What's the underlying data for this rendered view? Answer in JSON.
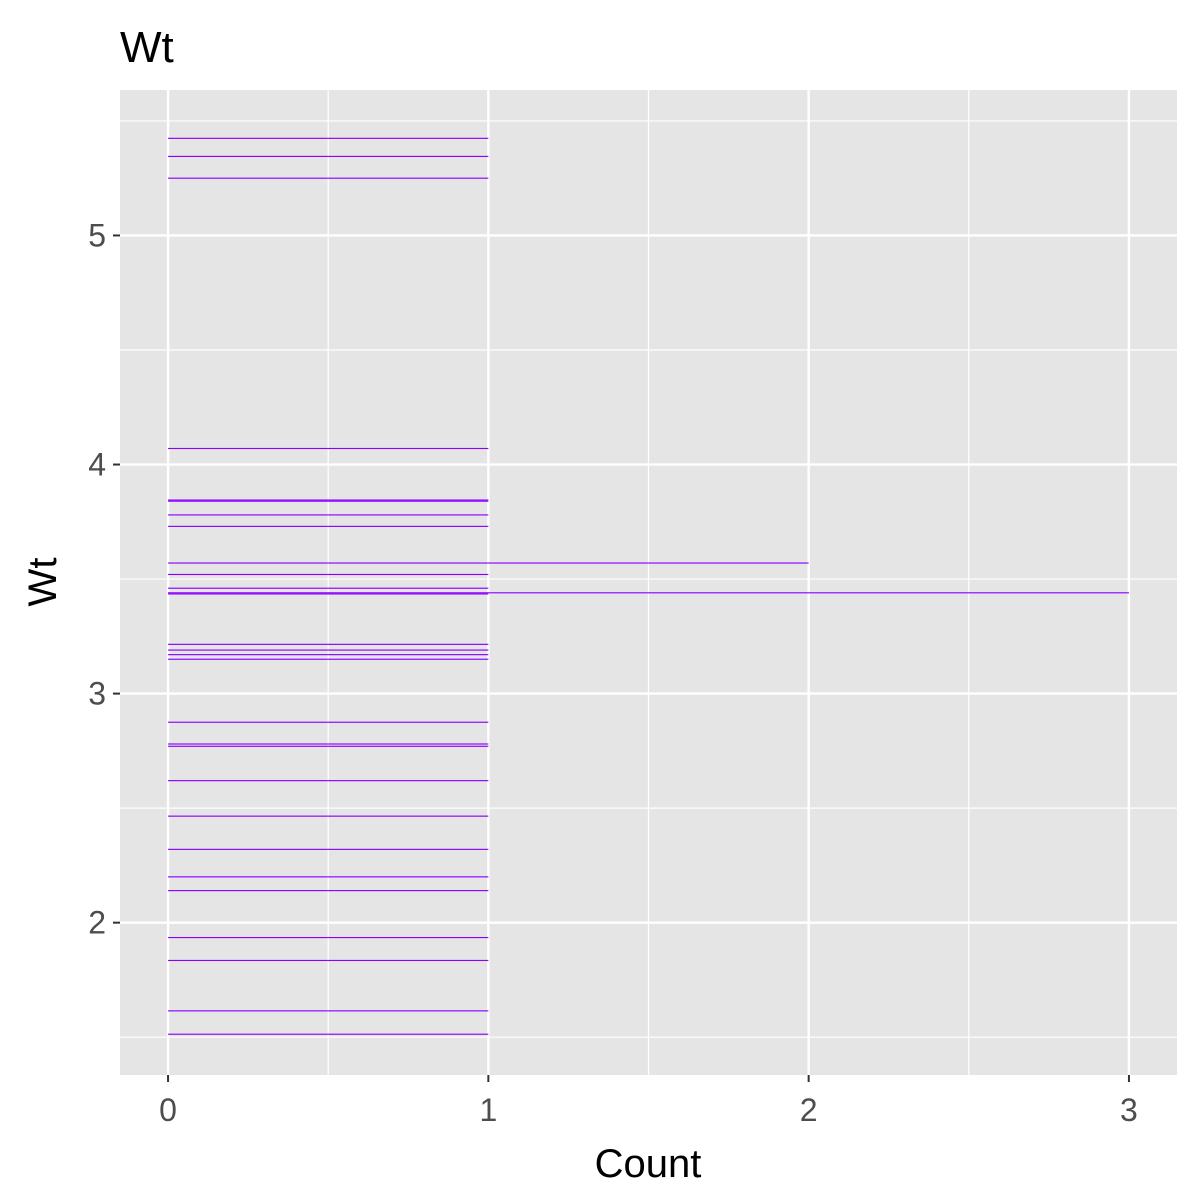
{
  "chart_data": {
    "type": "bar",
    "orientation": "horizontal",
    "title": "Wt",
    "xlabel": "Count",
    "ylabel": "Wt",
    "xlim": [
      -0.15,
      3.15
    ],
    "ylim": [
      1.335,
      5.635
    ],
    "x_ticks": [
      0,
      1,
      2,
      3
    ],
    "y_ticks": [
      2,
      3,
      4,
      5
    ],
    "grid": true,
    "legend": "none",
    "bar_color": "#8B00FF",
    "panel_color": "#E5E5E5",
    "grid_color": "#FFFFFF",
    "bar_thickness_data_units": 0.005,
    "bars": [
      {
        "wt": 1.513,
        "count": 1
      },
      {
        "wt": 1.615,
        "count": 1
      },
      {
        "wt": 1.835,
        "count": 1
      },
      {
        "wt": 1.935,
        "count": 1
      },
      {
        "wt": 2.14,
        "count": 1
      },
      {
        "wt": 2.2,
        "count": 1
      },
      {
        "wt": 2.32,
        "count": 1
      },
      {
        "wt": 2.465,
        "count": 1
      },
      {
        "wt": 2.62,
        "count": 1
      },
      {
        "wt": 2.77,
        "count": 1
      },
      {
        "wt": 2.78,
        "count": 1
      },
      {
        "wt": 2.875,
        "count": 1
      },
      {
        "wt": 3.15,
        "count": 1
      },
      {
        "wt": 3.17,
        "count": 1
      },
      {
        "wt": 3.19,
        "count": 1
      },
      {
        "wt": 3.215,
        "count": 1
      },
      {
        "wt": 3.435,
        "count": 1
      },
      {
        "wt": 3.44,
        "count": 3
      },
      {
        "wt": 3.46,
        "count": 1
      },
      {
        "wt": 3.52,
        "count": 1
      },
      {
        "wt": 3.57,
        "count": 2
      },
      {
        "wt": 3.73,
        "count": 1
      },
      {
        "wt": 3.78,
        "count": 1
      },
      {
        "wt": 3.84,
        "count": 1
      },
      {
        "wt": 3.845,
        "count": 1
      },
      {
        "wt": 4.07,
        "count": 1
      },
      {
        "wt": 5.25,
        "count": 1
      },
      {
        "wt": 5.345,
        "count": 1
      },
      {
        "wt": 5.424,
        "count": 1
      }
    ]
  }
}
